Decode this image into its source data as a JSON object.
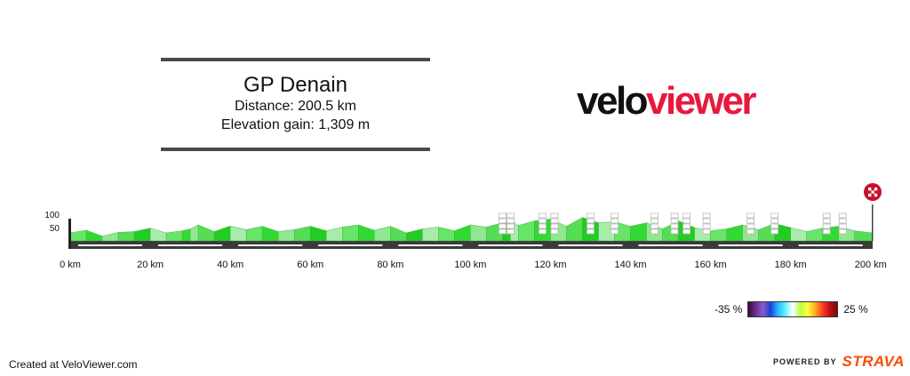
{
  "header": {
    "title": "GP Denain",
    "distance": "Distance: 200.5 km",
    "elevation": "Elevation gain: 1,309 m"
  },
  "logo": {
    "part1": "velo",
    "part2": "viewer"
  },
  "footer": {
    "created": "Created at VeloViewer.com",
    "powered": "POWERED BY",
    "brand": "STRAVA"
  },
  "legend": {
    "min_label": "-35 %",
    "max_label": "25 %"
  },
  "chart_data": {
    "type": "area",
    "title": "GP Denain",
    "xlabel": "",
    "ylabel": "",
    "xlim": [
      0,
      200.5
    ],
    "ylim": [
      0,
      100
    ],
    "x_ticks": [
      0,
      20,
      40,
      60,
      80,
      100,
      120,
      140,
      160,
      180,
      200
    ],
    "x_tick_labels": [
      "0 km",
      "20 km",
      "40 km",
      "60 km",
      "80 km",
      "100 km",
      "120 km",
      "140 km",
      "160 km",
      "180 km",
      "200 km"
    ],
    "y_ticks": [
      50,
      100
    ],
    "y_tick_labels": [
      "50",
      "100"
    ],
    "elevation_profile": {
      "x": [
        0,
        4,
        8,
        12,
        16,
        20,
        24,
        28,
        30,
        32,
        36,
        40,
        44,
        48,
        52,
        56,
        60,
        64,
        68,
        72,
        76,
        80,
        84,
        88,
        92,
        96,
        100,
        104,
        108,
        110,
        112,
        116,
        120,
        124,
        128,
        132,
        136,
        140,
        144,
        148,
        152,
        156,
        160,
        164,
        168,
        172,
        176,
        180,
        184,
        188,
        192,
        196,
        200.5
      ],
      "y": [
        30,
        40,
        18,
        32,
        35,
        48,
        30,
        38,
        45,
        60,
        35,
        56,
        42,
        55,
        35,
        42,
        55,
        38,
        52,
        60,
        40,
        55,
        30,
        45,
        52,
        38,
        60,
        52,
        68,
        78,
        58,
        75,
        82,
        55,
        88,
        68,
        72,
        55,
        68,
        45,
        75,
        50,
        38,
        45,
        60,
        42,
        65,
        50,
        35,
        48,
        55,
        38,
        30
      ]
    },
    "cobbled_sectors": [
      108,
      110,
      118,
      121,
      130,
      136,
      146,
      151,
      154,
      159,
      170,
      176,
      189,
      193
    ],
    "finish_km": 200.5
  }
}
